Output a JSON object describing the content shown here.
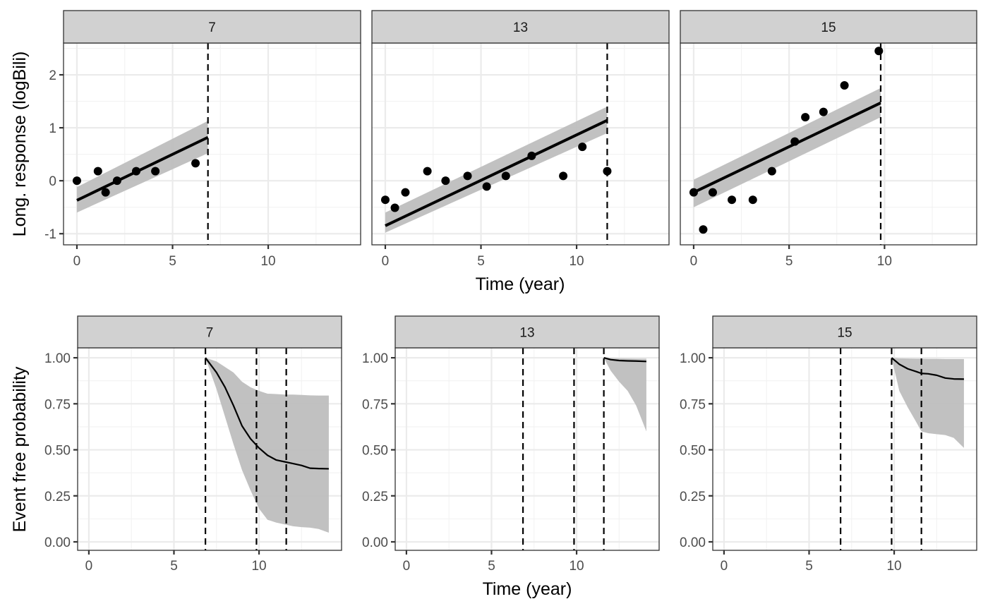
{
  "colors": {
    "strip_fill": "#d1d1d1",
    "border": "#333333",
    "grid_major": "#ebebeb",
    "grid_minor": "#f2f2f2",
    "band": "#bebebe",
    "line": "#000000",
    "point": "#000000"
  },
  "chart_data": [
    {
      "type": "scatter",
      "row": "longitudinal",
      "ylabel": "Long. response (logBili)",
      "xlabel": "Time (year)",
      "xlim": [
        -0.7,
        14.83
      ],
      "ylim": [
        -1.21,
        2.6
      ],
      "x_ticks": [
        "0",
        "5",
        "10"
      ],
      "x_tick_values": [
        0,
        5,
        10
      ],
      "y_ticks": [
        "-1",
        "0",
        "1",
        "2"
      ],
      "y_tick_values": [
        -1,
        0,
        1,
        2
      ],
      "grid": true,
      "panels": [
        {
          "strip": "7",
          "points": [
            [
              0,
              0
            ],
            [
              1.1,
              0.18
            ],
            [
              1.5,
              -0.22
            ],
            [
              2.1,
              0.0
            ],
            [
              3.1,
              0.18
            ],
            [
              4.1,
              0.18
            ],
            [
              6.2,
              0.33
            ]
          ],
          "fit": {
            "x": [
              0,
              6.85
            ],
            "y": [
              -0.37,
              0.82
            ]
          },
          "band": {
            "x": [
              0,
              6.85
            ],
            "lower": [
              -0.6,
              0.52
            ],
            "upper": [
              -0.12,
              1.13
            ]
          },
          "vlines": [
            6.85
          ]
        },
        {
          "strip": "13",
          "points": [
            [
              0,
              -0.36
            ],
            [
              0.5,
              -0.51
            ],
            [
              1.05,
              -0.22
            ],
            [
              2.2,
              0.18
            ],
            [
              3.15,
              0.0
            ],
            [
              4.3,
              0.09
            ],
            [
              5.3,
              -0.11
            ],
            [
              6.3,
              0.09
            ],
            [
              7.65,
              0.47
            ],
            [
              9.3,
              0.09
            ],
            [
              10.3,
              0.64
            ],
            [
              11.6,
              0.18
            ]
          ],
          "fit": {
            "x": [
              0,
              11.6
            ],
            "y": [
              -0.85,
              1.14
            ]
          },
          "band": {
            "x": [
              0,
              11.6
            ],
            "lower": [
              -0.98,
              0.9
            ],
            "upper": [
              -0.6,
              1.4
            ]
          },
          "vlines": [
            11.6
          ]
        },
        {
          "strip": "15",
          "points": [
            [
              0,
              -0.22
            ],
            [
              0.5,
              -0.92
            ],
            [
              1.0,
              -0.22
            ],
            [
              2.0,
              -0.36
            ],
            [
              3.1,
              -0.36
            ],
            [
              4.1,
              0.18
            ],
            [
              5.3,
              0.74
            ],
            [
              5.85,
              1.2
            ],
            [
              6.8,
              1.3
            ],
            [
              7.9,
              1.8
            ],
            [
              9.7,
              2.45
            ]
          ],
          "fit": {
            "x": [
              0,
              9.8
            ],
            "y": [
              -0.22,
              1.47
            ]
          },
          "band": {
            "x": [
              0,
              9.8
            ],
            "lower": [
              -0.5,
              1.2
            ],
            "upper": [
              0.02,
              1.75
            ]
          },
          "vlines": [
            9.8
          ]
        }
      ]
    },
    {
      "type": "area",
      "row": "survival",
      "ylabel": "Event free probability",
      "xlabel": "Time (year)",
      "xlim": [
        -0.66,
        14.85
      ],
      "ylim": [
        -0.046,
        1.054
      ],
      "x_ticks": [
        "0",
        "5",
        "10"
      ],
      "x_tick_values": [
        0,
        5,
        10
      ],
      "y_ticks": [
        "0.00",
        "0.25",
        "0.50",
        "0.75",
        "1.00"
      ],
      "y_tick_values": [
        0,
        0.25,
        0.5,
        0.75,
        1.0
      ],
      "grid": true,
      "panels": [
        {
          "strip": "7",
          "curve": {
            "x": [
              6.85,
              7.5,
              8.0,
              8.5,
              9.0,
              9.5,
              10.0,
              10.5,
              11.0,
              11.5,
              12.0,
              12.5,
              13.0,
              13.5,
              14.1
            ],
            "y": [
              1.0,
              0.92,
              0.84,
              0.74,
              0.63,
              0.56,
              0.51,
              0.47,
              0.445,
              0.435,
              0.425,
              0.415,
              0.4,
              0.398,
              0.397
            ],
            "lower": [
              1.0,
              0.83,
              0.68,
              0.53,
              0.39,
              0.28,
              0.18,
              0.12,
              0.105,
              0.095,
              0.085,
              0.08,
              0.077,
              0.07,
              0.05
            ],
            "upper": [
              1.0,
              0.98,
              0.95,
              0.92,
              0.87,
              0.84,
              0.82,
              0.805,
              0.803,
              0.8,
              0.8,
              0.798,
              0.796,
              0.795,
              0.795
            ]
          },
          "vlines": [
            6.85,
            9.85,
            11.6
          ]
        },
        {
          "strip": "13",
          "curve": {
            "x": [
              11.6,
              12.0,
              12.5,
              13.0,
              13.5,
              14.1
            ],
            "y": [
              1.0,
              0.99,
              0.985,
              0.983,
              0.982,
              0.98
            ],
            "lower": [
              1.0,
              0.93,
              0.87,
              0.82,
              0.74,
              0.6
            ],
            "upper": [
              1.0,
              0.998,
              0.997,
              0.996,
              0.995,
              0.995
            ]
          },
          "vlines": [
            6.85,
            9.85,
            11.6
          ]
        },
        {
          "strip": "15",
          "curve": {
            "x": [
              9.85,
              10.3,
              10.8,
              11.3,
              11.6,
              12.0,
              12.5,
              13.0,
              13.5,
              14.1
            ],
            "y": [
              1.0,
              0.965,
              0.94,
              0.925,
              0.915,
              0.913,
              0.905,
              0.89,
              0.885,
              0.884
            ],
            "lower": [
              1.0,
              0.82,
              0.73,
              0.65,
              0.6,
              0.59,
              0.585,
              0.58,
              0.565,
              0.51
            ],
            "upper": [
              1.0,
              0.997,
              0.996,
              0.995,
              0.995,
              0.994,
              0.994,
              0.993,
              0.993,
              0.993
            ]
          },
          "vlines": [
            6.85,
            9.85,
            11.6
          ]
        }
      ]
    }
  ]
}
